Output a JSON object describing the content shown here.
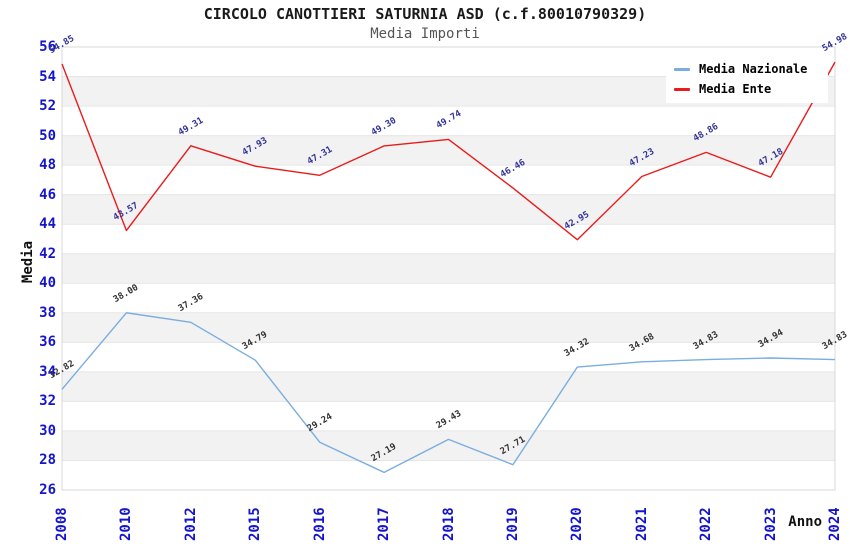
{
  "title": "CIRCOLO CANOTTIERI SATURNIA ASD (c.f.80010790329)",
  "subtitle": "Media Importi",
  "axes": {
    "y_label": "Media",
    "x_label": "Anno",
    "y_ticks": [
      26,
      28,
      30,
      32,
      34,
      36,
      38,
      40,
      42,
      44,
      46,
      48,
      50,
      52,
      54,
      56
    ]
  },
  "legend": {
    "position": "top-right",
    "items": [
      {
        "label": "Media Nazionale",
        "color": "#7aaede"
      },
      {
        "label": "Media Ente",
        "color": "#e81c1c"
      }
    ]
  },
  "colors": {
    "tick_label": "#1414cc",
    "band_gray": "#f2f2f2",
    "gridline": "#e6e6e6",
    "plot_border": "#d8d8d8",
    "nazionale_line": "#7aaede",
    "nazionale_label": "#333333",
    "ente_line": "#e81c1c",
    "ente_label": "#333399"
  },
  "chart_data": {
    "type": "line",
    "title": "CIRCOLO CANOTTIERI SATURNIA ASD (c.f.80010790329)",
    "subtitle": "Media Importi",
    "xlabel": "Anno",
    "ylabel": "Media",
    "ylim": [
      26,
      56
    ],
    "y_step": 2,
    "grid": "horizontal-bands-alternating",
    "legend_position": "top-right",
    "categories": [
      "2008",
      "2010",
      "2012",
      "2015",
      "2016",
      "2017",
      "2018",
      "2019",
      "2020",
      "2021",
      "2022",
      "2023",
      "2024"
    ],
    "series": [
      {
        "name": "Media Nazionale",
        "color": "#7aaede",
        "label_color": "#333333",
        "values": [
          32.82,
          38.0,
          37.36,
          34.79,
          29.24,
          27.19,
          29.43,
          27.71,
          34.32,
          34.68,
          34.83,
          34.94,
          34.83
        ]
      },
      {
        "name": "Media Ente",
        "color": "#e81c1c",
        "label_color": "#333399",
        "values": [
          54.85,
          43.57,
          49.31,
          47.93,
          47.31,
          49.3,
          49.74,
          46.46,
          42.95,
          47.23,
          48.86,
          47.18,
          54.98
        ]
      }
    ]
  }
}
